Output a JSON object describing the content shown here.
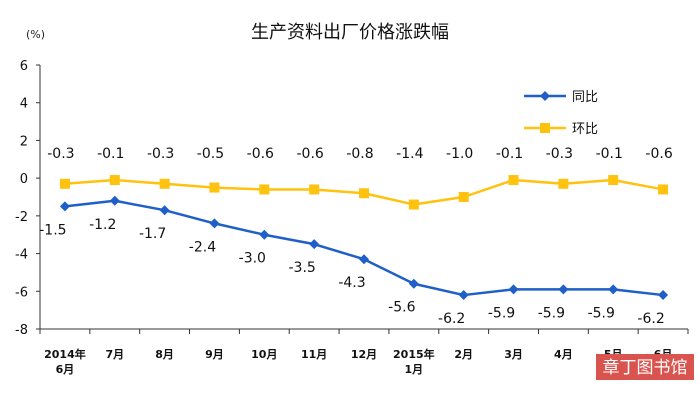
{
  "chart_data": {
    "type": "line",
    "title": "生产资料出厂价格涨跌幅",
    "unit": "(%)",
    "categories": [
      [
        "2014年",
        "6月"
      ],
      [
        "7月"
      ],
      [
        "8月"
      ],
      [
        "9月"
      ],
      [
        "10月"
      ],
      [
        "11月"
      ],
      [
        "12月"
      ],
      [
        "2015年",
        "1月"
      ],
      [
        "2月"
      ],
      [
        "3月"
      ],
      [
        "4月"
      ],
      [
        "5月"
      ],
      [
        "6月"
      ]
    ],
    "ylim": [
      -8,
      6
    ],
    "yticks": [
      6,
      4,
      2,
      0,
      -2,
      -4,
      -6,
      -8
    ],
    "grid": false,
    "legend_position": "top-right",
    "series": [
      {
        "name": "同比",
        "color": "#1f5fc8",
        "marker": "diamond",
        "values": [
          -1.5,
          -1.2,
          -1.7,
          -2.4,
          -3.0,
          -3.5,
          -4.3,
          -5.6,
          -6.2,
          -5.9,
          -5.9,
          -5.9,
          -6.2
        ],
        "labels": [
          "-1.5",
          "-1.2",
          "-1.7",
          "-2.4",
          "-3.0",
          "-3.5",
          "-4.3",
          "-5.6",
          "-6.2",
          "-5.9",
          "-5.9",
          "-5.9",
          "-6.2"
        ]
      },
      {
        "name": "环比",
        "color": "#ffc20e",
        "marker": "square",
        "values": [
          -0.3,
          -0.1,
          -0.3,
          -0.5,
          -0.6,
          -0.6,
          -0.8,
          -1.4,
          -1.0,
          -0.1,
          -0.3,
          -0.1,
          -0.6
        ],
        "labels": [
          "-0.3",
          "-0.1",
          "-0.3",
          "-0.5",
          "-0.6",
          "-0.6",
          "-0.8",
          "-1.4",
          "-1.0",
          "-0.1",
          "-0.3",
          "-0.1",
          "-0.6"
        ]
      }
    ]
  },
  "watermark": {
    "text": "章丁图书馆",
    "background": "#d9534f"
  }
}
